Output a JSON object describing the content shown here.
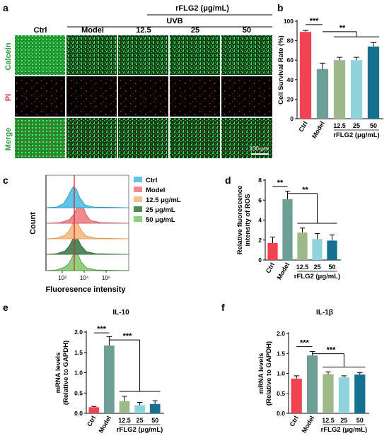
{
  "panels": {
    "a": {
      "letter": "a",
      "treatment_header": "rFLG2 (μg/mL)",
      "uvb_label": "UVB",
      "columns": [
        "Ctrl",
        "Model",
        "12.5",
        "25",
        "50"
      ],
      "rows": [
        "Calcein",
        "PI",
        "Merge"
      ],
      "scale_bar": "100 μm",
      "colors": {
        "calcein": "#33c24a",
        "pi": "#d8283a",
        "merge": "#2fb842",
        "row_calcein": "#2e9a3e",
        "row_pi": "#d32c38",
        "row_merge_a": "#2e9a3e",
        "row_merge_b": "#d32c38"
      }
    },
    "b": {
      "letter": "b"
    },
    "c": {
      "letter": "c",
      "ylabel": "Count",
      "xlabel": "Fluoresence  intensity",
      "ticks": [
        "10²",
        "10⁴",
        "10⁶"
      ],
      "legend": [
        {
          "label": "Ctrl",
          "color": "#5ec5e8"
        },
        {
          "label": "Model",
          "color": "#f08a8f"
        },
        {
          "label": "12.5 μg/mL",
          "color": "#f7c08a"
        },
        {
          "label": "25 μg/mL",
          "color": "#4f8a5a"
        },
        {
          "label": "50 μg/mL",
          "color": "#8fd07a"
        }
      ],
      "marker_color": "#d8262e"
    },
    "d": {
      "letter": "d"
    },
    "e": {
      "letter": "e"
    },
    "f": {
      "letter": "f"
    }
  },
  "chart_data": [
    {
      "id": "b",
      "type": "bar",
      "categories": [
        "Ctrl",
        "Model",
        "12.5",
        "25",
        "50"
      ],
      "values": [
        89,
        51,
        60,
        60,
        74
      ],
      "errors": [
        1.5,
        6,
        3,
        3,
        4
      ],
      "colors": [
        "#f0434f",
        "#6d9f96",
        "#9db889",
        "#8fd3dc",
        "#16708f"
      ],
      "title": "",
      "xlabel": "rFLG2 (μg/mL)",
      "ylabel": "Cell Survival Rate (%)",
      "ylim": [
        0,
        100
      ],
      "yticks": [
        0,
        20,
        40,
        60,
        80,
        100
      ],
      "sig": [
        {
          "text": "***",
          "from": 0,
          "to": 1
        },
        {
          "text": "**",
          "from": 1,
          "to": 4
        }
      ]
    },
    {
      "id": "d",
      "type": "bar",
      "categories": [
        "Ctrl",
        "Model",
        "12.5",
        "25",
        "50"
      ],
      "values": [
        1.7,
        6.1,
        2.75,
        2.1,
        1.95
      ],
      "errors": [
        0.6,
        0.8,
        0.45,
        0.55,
        0.55
      ],
      "colors": [
        "#f0434f",
        "#6d9f96",
        "#9db889",
        "#8fd3dc",
        "#16708f"
      ],
      "title": "",
      "xlabel": "rFLG2 (μg/mL)",
      "ylabel": "Relative fluorescence intensity of ROS",
      "ylim": [
        0,
        8
      ],
      "yticks": [
        0,
        2,
        4,
        6,
        8
      ],
      "sig": [
        {
          "text": "**",
          "from": 0,
          "to": 1
        },
        {
          "text": "**",
          "from": 1,
          "to": 4
        }
      ]
    },
    {
      "id": "e",
      "type": "bar",
      "categories": [
        "Ctrl",
        "Model",
        "12.5",
        "25",
        "50"
      ],
      "values": [
        0.15,
        1.67,
        0.3,
        0.2,
        0.23
      ],
      "errors": [
        0.02,
        0.22,
        0.12,
        0.07,
        0.08
      ],
      "colors": [
        "#f0434f",
        "#6d9f96",
        "#9db889",
        "#8fd3dc",
        "#16708f"
      ],
      "title": "IL-10",
      "xlabel": "rFLG2 (μg/mL)",
      "ylabel": "mRNA levels (Relative to GAPDH)",
      "ylim": [
        0,
        2.0
      ],
      "yticks": [
        0.0,
        0.5,
        1.0,
        1.5,
        2.0
      ],
      "sig": [
        {
          "text": "***",
          "from": 0,
          "to": 1
        },
        {
          "text": "***",
          "from": 1,
          "to": 4
        }
      ]
    },
    {
      "id": "f",
      "type": "bar",
      "categories": [
        "Ctrl",
        "Model",
        "12.5",
        "25",
        "50"
      ],
      "values": [
        0.87,
        1.45,
        0.98,
        0.9,
        0.97
      ],
      "errors": [
        0.07,
        0.1,
        0.06,
        0.04,
        0.05
      ],
      "colors": [
        "#f0434f",
        "#6d9f96",
        "#9db889",
        "#8fd3dc",
        "#16708f"
      ],
      "title": "IL-1β",
      "xlabel": "rFLG2 (μg/mL)",
      "ylabel": "mRNA levels (Relative to GAPDH)",
      "ylim": [
        0,
        2.0
      ],
      "yticks": [
        0.0,
        0.5,
        1.0,
        1.5,
        2.0
      ],
      "sig": [
        {
          "text": "***",
          "from": 0,
          "to": 1
        },
        {
          "text": "***",
          "from": 1,
          "to": 4
        }
      ]
    }
  ]
}
